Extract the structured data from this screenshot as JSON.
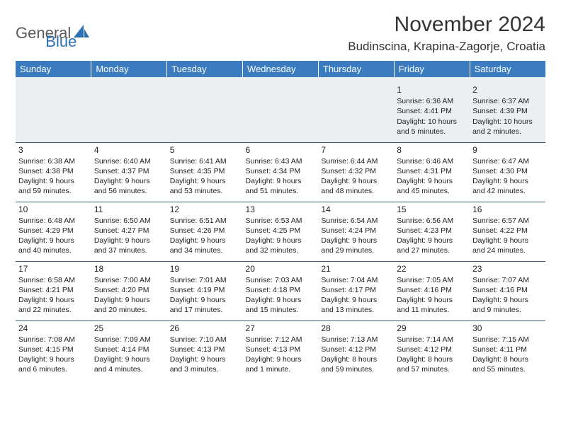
{
  "logo": {
    "part1": "General",
    "part2": "Blue"
  },
  "title": "November 2024",
  "location": "Budinscina, Krapina-Zagorje, Croatia",
  "colors": {
    "header_bg": "#3b7bbf",
    "header_text": "#ffffff",
    "border": "#3b5a7a",
    "logo_blue": "#2a71b8",
    "logo_gray": "#5a5a5a"
  },
  "weekdays": [
    "Sunday",
    "Monday",
    "Tuesday",
    "Wednesday",
    "Thursday",
    "Friday",
    "Saturday"
  ],
  "weeks": [
    [
      null,
      null,
      null,
      null,
      null,
      {
        "d": "1",
        "sr": "6:36 AM",
        "ss": "4:41 PM",
        "dl": "10 hours and 5 minutes."
      },
      {
        "d": "2",
        "sr": "6:37 AM",
        "ss": "4:39 PM",
        "dl": "10 hours and 2 minutes."
      }
    ],
    [
      {
        "d": "3",
        "sr": "6:38 AM",
        "ss": "4:38 PM",
        "dl": "9 hours and 59 minutes."
      },
      {
        "d": "4",
        "sr": "6:40 AM",
        "ss": "4:37 PM",
        "dl": "9 hours and 56 minutes."
      },
      {
        "d": "5",
        "sr": "6:41 AM",
        "ss": "4:35 PM",
        "dl": "9 hours and 53 minutes."
      },
      {
        "d": "6",
        "sr": "6:43 AM",
        "ss": "4:34 PM",
        "dl": "9 hours and 51 minutes."
      },
      {
        "d": "7",
        "sr": "6:44 AM",
        "ss": "4:32 PM",
        "dl": "9 hours and 48 minutes."
      },
      {
        "d": "8",
        "sr": "6:46 AM",
        "ss": "4:31 PM",
        "dl": "9 hours and 45 minutes."
      },
      {
        "d": "9",
        "sr": "6:47 AM",
        "ss": "4:30 PM",
        "dl": "9 hours and 42 minutes."
      }
    ],
    [
      {
        "d": "10",
        "sr": "6:48 AM",
        "ss": "4:29 PM",
        "dl": "9 hours and 40 minutes."
      },
      {
        "d": "11",
        "sr": "6:50 AM",
        "ss": "4:27 PM",
        "dl": "9 hours and 37 minutes."
      },
      {
        "d": "12",
        "sr": "6:51 AM",
        "ss": "4:26 PM",
        "dl": "9 hours and 34 minutes."
      },
      {
        "d": "13",
        "sr": "6:53 AM",
        "ss": "4:25 PM",
        "dl": "9 hours and 32 minutes."
      },
      {
        "d": "14",
        "sr": "6:54 AM",
        "ss": "4:24 PM",
        "dl": "9 hours and 29 minutes."
      },
      {
        "d": "15",
        "sr": "6:56 AM",
        "ss": "4:23 PM",
        "dl": "9 hours and 27 minutes."
      },
      {
        "d": "16",
        "sr": "6:57 AM",
        "ss": "4:22 PM",
        "dl": "9 hours and 24 minutes."
      }
    ],
    [
      {
        "d": "17",
        "sr": "6:58 AM",
        "ss": "4:21 PM",
        "dl": "9 hours and 22 minutes."
      },
      {
        "d": "18",
        "sr": "7:00 AM",
        "ss": "4:20 PM",
        "dl": "9 hours and 20 minutes."
      },
      {
        "d": "19",
        "sr": "7:01 AM",
        "ss": "4:19 PM",
        "dl": "9 hours and 17 minutes."
      },
      {
        "d": "20",
        "sr": "7:03 AM",
        "ss": "4:18 PM",
        "dl": "9 hours and 15 minutes."
      },
      {
        "d": "21",
        "sr": "7:04 AM",
        "ss": "4:17 PM",
        "dl": "9 hours and 13 minutes."
      },
      {
        "d": "22",
        "sr": "7:05 AM",
        "ss": "4:16 PM",
        "dl": "9 hours and 11 minutes."
      },
      {
        "d": "23",
        "sr": "7:07 AM",
        "ss": "4:16 PM",
        "dl": "9 hours and 9 minutes."
      }
    ],
    [
      {
        "d": "24",
        "sr": "7:08 AM",
        "ss": "4:15 PM",
        "dl": "9 hours and 6 minutes."
      },
      {
        "d": "25",
        "sr": "7:09 AM",
        "ss": "4:14 PM",
        "dl": "9 hours and 4 minutes."
      },
      {
        "d": "26",
        "sr": "7:10 AM",
        "ss": "4:13 PM",
        "dl": "9 hours and 3 minutes."
      },
      {
        "d": "27",
        "sr": "7:12 AM",
        "ss": "4:13 PM",
        "dl": "9 hours and 1 minute."
      },
      {
        "d": "28",
        "sr": "7:13 AM",
        "ss": "4:12 PM",
        "dl": "8 hours and 59 minutes."
      },
      {
        "d": "29",
        "sr": "7:14 AM",
        "ss": "4:12 PM",
        "dl": "8 hours and 57 minutes."
      },
      {
        "d": "30",
        "sr": "7:15 AM",
        "ss": "4:11 PM",
        "dl": "8 hours and 55 minutes."
      }
    ]
  ],
  "labels": {
    "sunrise": "Sunrise:",
    "sunset": "Sunset:",
    "daylight": "Daylight:"
  }
}
